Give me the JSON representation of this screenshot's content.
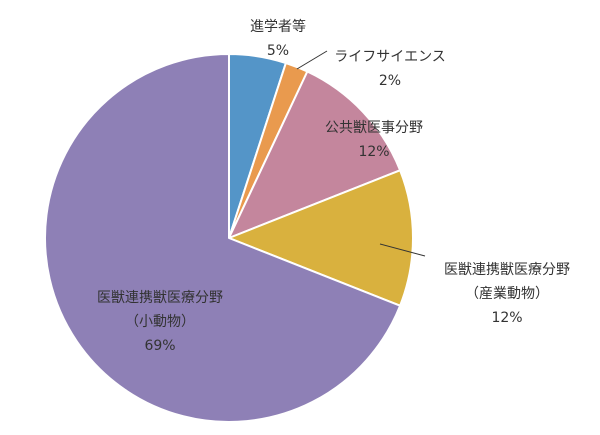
{
  "chart_data": {
    "type": "pie",
    "title": "",
    "slices": [
      {
        "label": [
          "進学者等"
        ],
        "pct_label": "5%",
        "value": 5,
        "color": "#5495c8"
      },
      {
        "label": [
          "ライフサイエンス"
        ],
        "pct_label": "2%",
        "value": 2,
        "color": "#e99a4e"
      },
      {
        "label": [
          "公共獣医事分野"
        ],
        "pct_label": "12%",
        "value": 12,
        "color": "#c4869d"
      },
      {
        "label": [
          "医獣連携獣医療分野",
          "（産業動物）"
        ],
        "pct_label": "12%",
        "value": 12,
        "color": "#d9b13e"
      },
      {
        "label": [
          "医獣連携獣医療分野",
          "（小動物）"
        ],
        "pct_label": "69%",
        "value": 69,
        "color": "#8e80b6"
      }
    ],
    "start_angle": "12 o'clock",
    "direction": "clockwise",
    "legend": "none"
  }
}
